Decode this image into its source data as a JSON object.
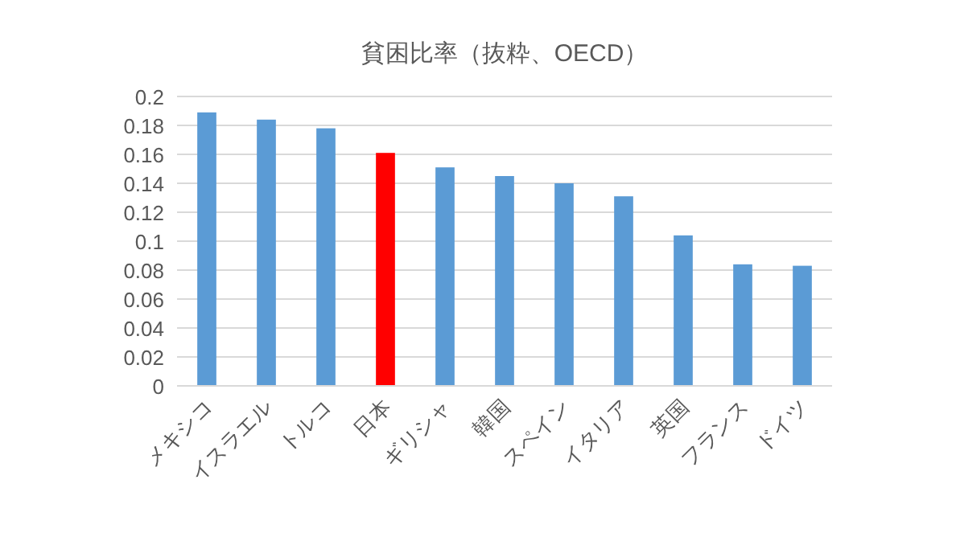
{
  "chart_data": {
    "type": "bar",
    "title": "貧困比率（抜粋、OECD）",
    "categories": [
      "メキシコ",
      "イスラエル",
      "トルコ",
      "日本",
      "ギリシャ",
      "韓国",
      "スペイン",
      "イタリア",
      "英国",
      "フランス",
      "ドイツ"
    ],
    "values": [
      0.189,
      0.184,
      0.178,
      0.161,
      0.151,
      0.145,
      0.14,
      0.131,
      0.104,
      0.084,
      0.083
    ],
    "colors": [
      "#5b9bd5",
      "#5b9bd5",
      "#5b9bd5",
      "#ff0000",
      "#5b9bd5",
      "#5b9bd5",
      "#5b9bd5",
      "#5b9bd5",
      "#5b9bd5",
      "#5b9bd5",
      "#5b9bd5"
    ],
    "ylim": [
      0,
      0.2
    ],
    "yticks": [
      0,
      0.02,
      0.04,
      0.06,
      0.08,
      0.1,
      0.12,
      0.14,
      0.16,
      0.18,
      0.2
    ],
    "grid": "y"
  }
}
